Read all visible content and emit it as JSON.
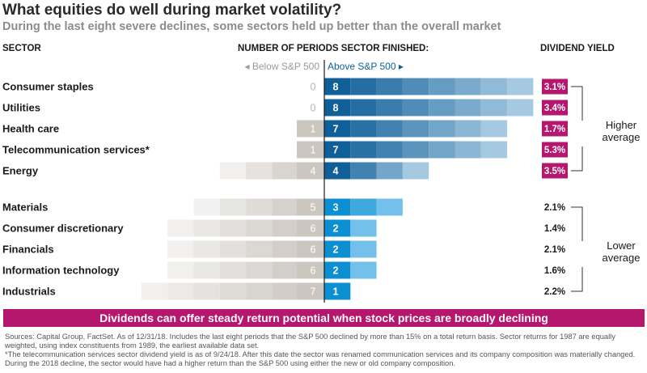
{
  "title": "What equities do well during market volatility?",
  "subtitle": "During the last eight severe declines, some sectors held up better than the overall market",
  "headers": {
    "sector": "SECTOR",
    "periods": "NUMBER OF PERIODS SECTOR FINISHED:",
    "yield": "DIVIDEND YIELD"
  },
  "colors": {
    "higher_dark": "#0f5f99",
    "higher_light": "#a5c9e0",
    "lower_dark": "#0b8fd1",
    "lower_light": "#73c1ea",
    "below_dark": "#cbc6c0",
    "below_light": "#f2f0ee",
    "accent": "#b5176f"
  },
  "chart_data": {
    "type": "bar",
    "title": "What equities do well during market volatility?",
    "subtitle": "During the last eight severe declines, some sectors held up better than the overall market",
    "below_label": "◂ Below S&P 500",
    "above_label": "Above S&P 500 ▸",
    "xlim": [
      -8,
      8
    ],
    "categories": [
      "Consumer staples",
      "Utilities",
      "Health care",
      "Telecommunication services*",
      "Energy",
      "Materials",
      "Consumer discretionary",
      "Financials",
      "Information technology",
      "Industrials"
    ],
    "series": [
      {
        "name": "Below S&P 500",
        "values": [
          0,
          0,
          1,
          1,
          4,
          5,
          6,
          6,
          6,
          7
        ]
      },
      {
        "name": "Above S&P 500",
        "values": [
          8,
          8,
          7,
          7,
          4,
          3,
          2,
          2,
          2,
          1
        ]
      },
      {
        "name": "Dividend yield",
        "values": [
          "3.1%",
          "3.4%",
          "1.7%",
          "5.3%",
          "3.5%",
          "2.1%",
          "1.4%",
          "2.1%",
          "1.6%",
          "2.2%"
        ]
      }
    ],
    "groups": [
      {
        "label_line1": "Higher",
        "label_line2": "average",
        "start": 0,
        "end": 4
      },
      {
        "label_line1": "Lower",
        "label_line2": "average",
        "start": 5,
        "end": 9
      }
    ]
  },
  "banner": "Dividends can offer steady return potential when stock prices are broadly declining",
  "footnotes": [
    "Sources: Capital Group, FactSet. As of 12/31/18. Includes the last eight periods that the S&P 500 declined by more than 15% on a total return basis. Sector returns for 1987 are equally weighted, using index constituents from 1989, the earliest available data set.",
    "*The telecommunication services sector dividend yield is as of 9/24/18. After this date the sector was renamed communication services and its company composition was materially changed. During the 2018 decline, the sector would have had a higher return than the S&P 500 using either the new or old company composition."
  ]
}
